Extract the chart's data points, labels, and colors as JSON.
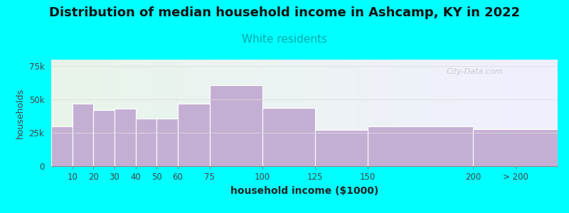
{
  "title": "Distribution of median household income in Ashcamp, KY in 2022",
  "subtitle": "White residents",
  "xlabel": "household income ($1000)",
  "ylabel": "households",
  "background_color": "#00FFFF",
  "plot_bg_color_left": "#e8f5e9",
  "plot_bg_color_right": "#f0f0ff",
  "bar_color": "#c4afd4",
  "categories": [
    "10",
    "20",
    "30",
    "40",
    "50",
    "60",
    "75",
    "100",
    "125",
    "150",
    "200",
    "> 200"
  ],
  "values": [
    30000,
    47000,
    42000,
    43000,
    36000,
    36000,
    47000,
    61000,
    44000,
    27000,
    30000,
    28000
  ],
  "bar_lefts": [
    0,
    10,
    20,
    30,
    40,
    50,
    60,
    75,
    100,
    125,
    150,
    200
  ],
  "bar_widths": [
    10,
    10,
    10,
    10,
    10,
    10,
    15,
    25,
    25,
    25,
    50,
    40
  ],
  "xtick_positions": [
    10,
    20,
    30,
    40,
    50,
    60,
    75,
    100,
    125,
    150,
    200,
    220
  ],
  "xlim": [
    0,
    240
  ],
  "ylim": [
    0,
    80000
  ],
  "yticks": [
    0,
    25000,
    50000,
    75000
  ],
  "ytick_labels": [
    "0",
    "25k",
    "50k",
    "75k"
  ],
  "title_fontsize": 13,
  "subtitle_fontsize": 11,
  "subtitle_color": "#00aaaa",
  "title_color": "#111111",
  "watermark": "City-Data.com",
  "watermark_color": "#bbbbbb"
}
